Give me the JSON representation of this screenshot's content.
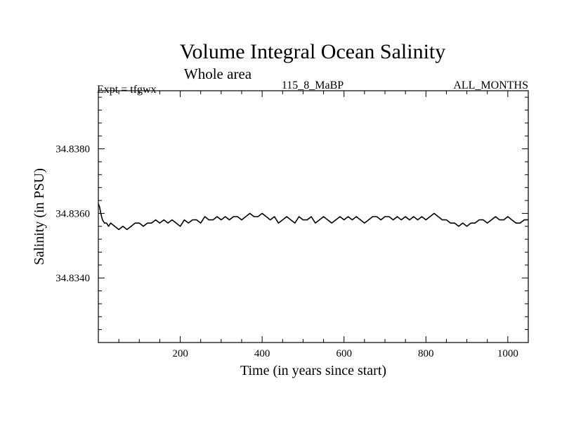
{
  "chart_data": {
    "type": "line",
    "title": "Volume Integral Ocean Salinity",
    "subtitle": "Whole area",
    "left_label": "Expt = tfgwx",
    "center_label": "115_8_MaBP",
    "right_label": "ALL_MONTHS",
    "xlabel": "Time (in years since start)",
    "ylabel": "Salinity (in PSU)",
    "xlim": [
      0,
      1050
    ],
    "ylim": [
      34.832,
      34.8398
    ],
    "x_ticks": [
      200,
      400,
      600,
      800,
      1000
    ],
    "y_ticks": [
      "34.8340",
      "34.8360",
      "34.8380"
    ],
    "grid": false,
    "series": [
      {
        "name": "Salinity",
        "color": "#000000",
        "x": [
          0,
          3,
          6,
          10,
          15,
          20,
          25,
          30,
          40,
          50,
          60,
          70,
          80,
          90,
          100,
          110,
          120,
          130,
          140,
          150,
          160,
          170,
          180,
          190,
          200,
          210,
          220,
          230,
          240,
          250,
          260,
          270,
          280,
          290,
          300,
          310,
          320,
          330,
          340,
          350,
          360,
          370,
          380,
          390,
          400,
          410,
          420,
          430,
          440,
          450,
          460,
          470,
          480,
          490,
          500,
          510,
          520,
          530,
          540,
          550,
          560,
          570,
          580,
          590,
          600,
          610,
          620,
          630,
          640,
          650,
          660,
          670,
          680,
          690,
          700,
          710,
          720,
          730,
          740,
          750,
          760,
          770,
          780,
          790,
          800,
          810,
          820,
          830,
          840,
          850,
          860,
          870,
          880,
          890,
          900,
          910,
          920,
          930,
          940,
          950,
          960,
          970,
          980,
          990,
          1000,
          1010,
          1020,
          1030,
          1040,
          1050
        ],
        "values": [
          34.8363,
          34.8362,
          34.836,
          34.8358,
          34.8357,
          34.8357,
          34.8356,
          34.8357,
          34.8356,
          34.8355,
          34.8356,
          34.8355,
          34.8356,
          34.8357,
          34.8357,
          34.8356,
          34.8357,
          34.8357,
          34.8358,
          34.8357,
          34.8358,
          34.8357,
          34.8358,
          34.8357,
          34.8356,
          34.8358,
          34.8357,
          34.8358,
          34.8358,
          34.8357,
          34.8359,
          34.8358,
          34.8358,
          34.8359,
          34.8358,
          34.8359,
          34.8358,
          34.8359,
          34.8359,
          34.8358,
          34.8359,
          34.836,
          34.8359,
          34.8359,
          34.836,
          34.8359,
          34.8358,
          34.8359,
          34.8357,
          34.8358,
          34.8359,
          34.8358,
          34.8357,
          34.8359,
          34.8358,
          34.8358,
          34.8359,
          34.8357,
          34.8358,
          34.8359,
          34.8358,
          34.8357,
          34.8358,
          34.8359,
          34.8358,
          34.8359,
          34.8358,
          34.8359,
          34.8358,
          34.8357,
          34.8358,
          34.8359,
          34.8359,
          34.8358,
          34.8359,
          34.8359,
          34.8358,
          34.8359,
          34.8358,
          34.8359,
          34.8358,
          34.8359,
          34.8358,
          34.8359,
          34.8358,
          34.8359,
          34.836,
          34.8359,
          34.8358,
          34.8358,
          34.8357,
          34.8357,
          34.8356,
          34.8357,
          34.8356,
          34.8357,
          34.8357,
          34.8358,
          34.8358,
          34.8357,
          34.8358,
          34.8359,
          34.8358,
          34.8358,
          34.8359,
          34.8358,
          34.8357,
          34.8357,
          34.8358,
          34.8358
        ]
      }
    ]
  }
}
